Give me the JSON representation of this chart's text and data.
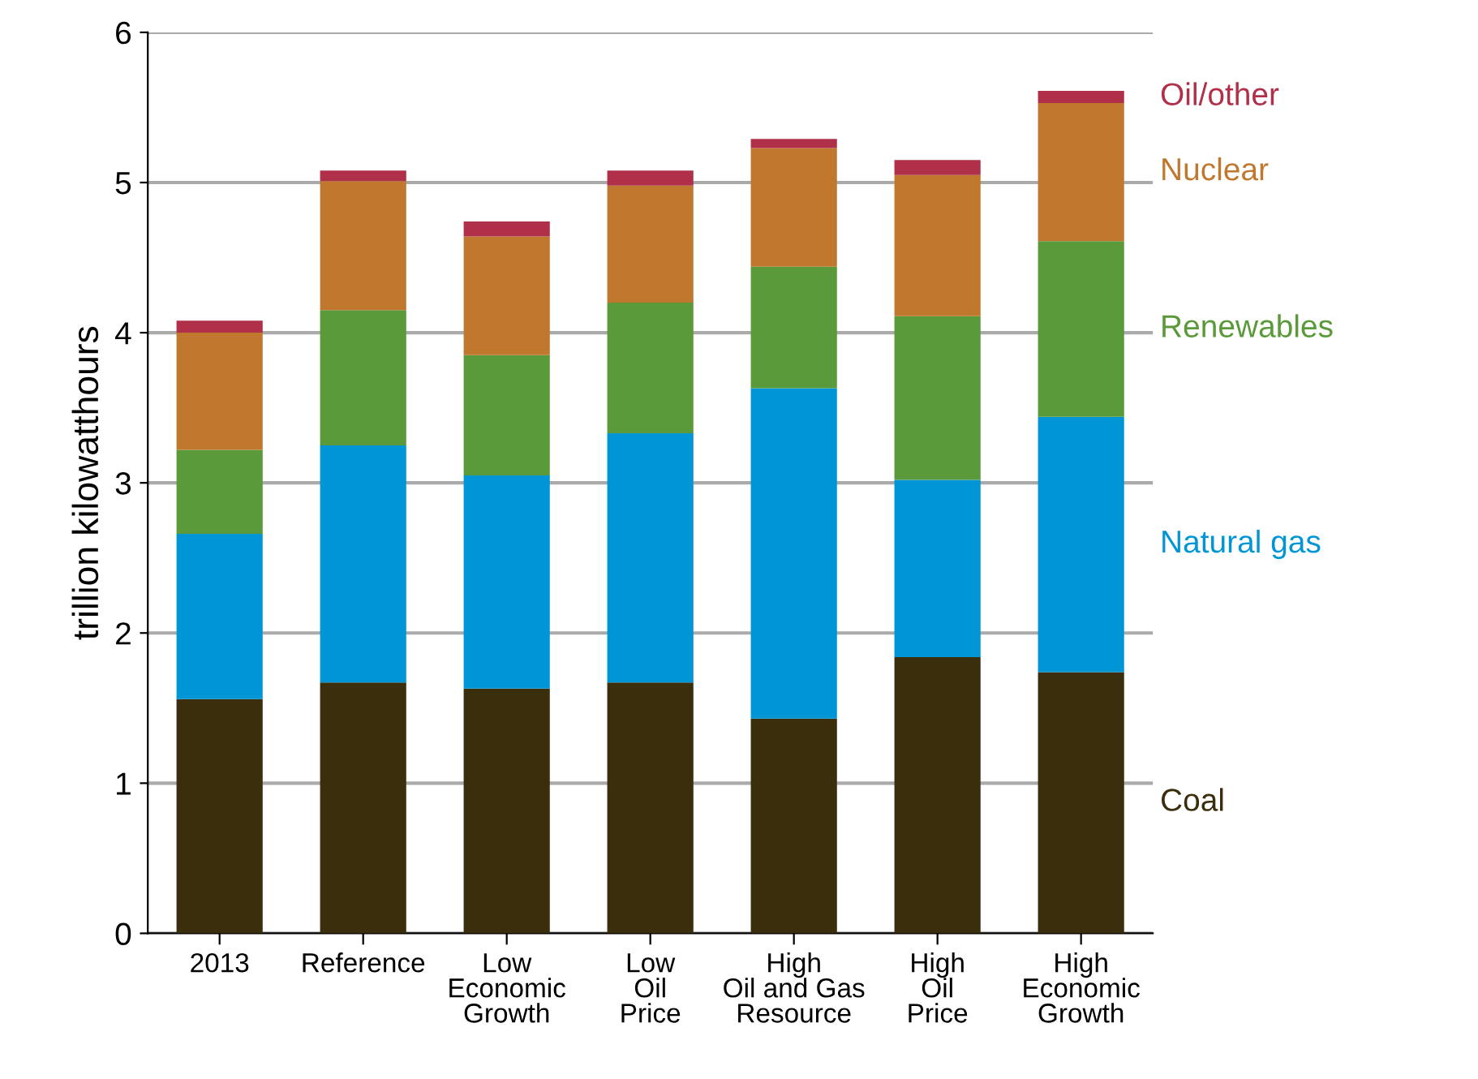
{
  "chart_data": {
    "type": "bar",
    "stacked": true,
    "ylabel": "trillion kilowatthours",
    "categories": [
      "2013",
      "Reference",
      "Low\nEconomic\nGrowth",
      "Low\nOil\nPrice",
      "High\nOil and Gas\nResource",
      "High\nOil\nPrice",
      "High\nEconomic\nGrowth"
    ],
    "series": [
      {
        "name": "Coal",
        "color": "#3a2e0c",
        "values": [
          1.56,
          1.67,
          1.63,
          1.67,
          1.43,
          1.84,
          1.74
        ]
      },
      {
        "name": "Natural gas",
        "color": "#0096d6",
        "values": [
          1.1,
          1.58,
          1.42,
          1.66,
          2.2,
          1.18,
          1.7
        ]
      },
      {
        "name": "Renewables",
        "color": "#5a9a3a",
        "values": [
          0.56,
          0.9,
          0.8,
          0.87,
          0.81,
          1.09,
          1.17
        ]
      },
      {
        "name": "Nuclear",
        "color": "#c0782e",
        "values": [
          0.78,
          0.86,
          0.79,
          0.78,
          0.79,
          0.94,
          0.92
        ]
      },
      {
        "name": "Oil/other",
        "color": "#b0304a",
        "values": [
          0.08,
          0.07,
          0.1,
          0.1,
          0.06,
          0.1,
          0.08
        ]
      }
    ],
    "ylim": [
      0,
      6
    ],
    "yticks": [
      0,
      1,
      2,
      3,
      4,
      5,
      6
    ],
    "grid": "y",
    "legend": "right"
  }
}
